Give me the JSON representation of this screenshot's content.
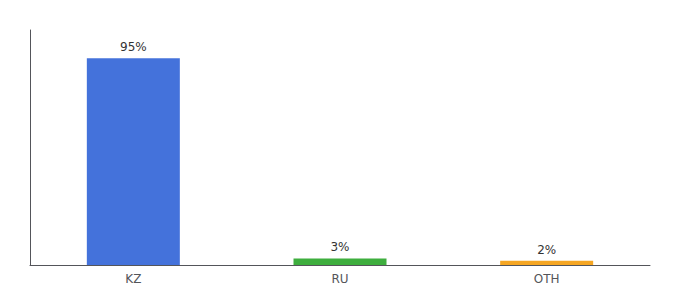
{
  "chart_data": {
    "type": "bar",
    "categories": [
      "KZ",
      "RU",
      "OTH"
    ],
    "values": [
      95,
      3,
      2
    ],
    "value_labels": [
      "95%",
      "3%",
      "2%"
    ],
    "colors": [
      "#4472db",
      "#3eae3e",
      "#f5a623"
    ],
    "ylim": [
      0,
      108
    ],
    "data_labels": true,
    "tick_labels": "x",
    "grid": false
  }
}
